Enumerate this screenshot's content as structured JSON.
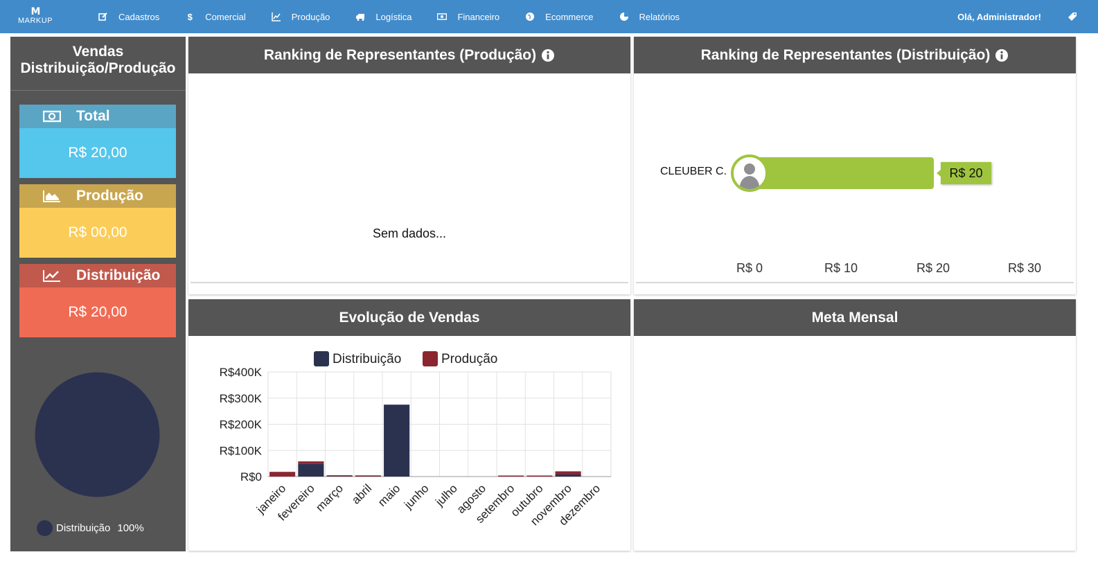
{
  "app": {
    "logo_mark": "M",
    "logo_text": "MARKUP",
    "greeting": "Olá, Administrador!"
  },
  "nav": [
    {
      "label": "Cadastros",
      "icon": "edit-icon"
    },
    {
      "label": "Comercial",
      "icon": "dollar-icon"
    },
    {
      "label": "Produção",
      "icon": "line-chart-icon"
    },
    {
      "label": "Logística",
      "icon": "truck-icon"
    },
    {
      "label": "Financeiro",
      "icon": "money-icon"
    },
    {
      "label": "Ecommerce",
      "icon": "globe-icon"
    },
    {
      "label": "Relatórios",
      "icon": "pie-chart-icon"
    }
  ],
  "sales": {
    "title_line1": "Vendas",
    "title_line2": "Distribuição/Produção",
    "total": {
      "label": "Total",
      "value": "R$ 20,00",
      "icon": "money-icon"
    },
    "producao": {
      "label": "Produção",
      "value": "R$ 00,00",
      "icon": "area-chart-icon"
    },
    "distribuicao": {
      "label": "Distribuição",
      "value": "R$ 20,00",
      "icon": "line-chart-icon"
    },
    "pie_legend": {
      "label": "Distribuição",
      "percent": "100%",
      "color": "#2b3250"
    }
  },
  "ranking_producao": {
    "title": "Ranking de Representantes (Produção)",
    "empty_text": "Sem dados..."
  },
  "ranking_distribuicao": {
    "title": "Ranking de Representantes (Distribuição)",
    "name": "CLEUBER C.",
    "value_label": "R$ 20",
    "value": 20,
    "axis_max": 30,
    "axis_ticks": [
      "R$ 0",
      "R$ 10",
      "R$ 20",
      "R$ 30"
    ],
    "bar_color": "#9fc53f"
  },
  "evolucao": {
    "title": "Evolução de Vendas"
  },
  "meta": {
    "title": "Meta Mensal"
  },
  "chart_data": {
    "type": "bar",
    "stacked": true,
    "categories": [
      "janeiro",
      "fevereiro",
      "março",
      "abril",
      "maio",
      "junho",
      "julho",
      "agosto",
      "setembro",
      "outubro",
      "novembro",
      "dezembro"
    ],
    "series": [
      {
        "name": "Distribuição",
        "color": "#2b3250",
        "values": [
          0,
          48000,
          1000,
          500,
          275000,
          0,
          0,
          0,
          0,
          0,
          8000,
          0
        ]
      },
      {
        "name": "Produção",
        "color": "#8b2630",
        "values": [
          18000,
          10000,
          2000,
          1500,
          0,
          0,
          0,
          0,
          3000,
          3000,
          12000,
          0
        ]
      }
    ],
    "ylim": [
      0,
      400000
    ],
    "yticks": [
      0,
      100000,
      200000,
      300000,
      400000
    ],
    "ytick_labels": [
      "R$0",
      "R$100K",
      "R$200K",
      "R$300K",
      "R$400K"
    ],
    "legend_position": "top",
    "grid": true
  }
}
